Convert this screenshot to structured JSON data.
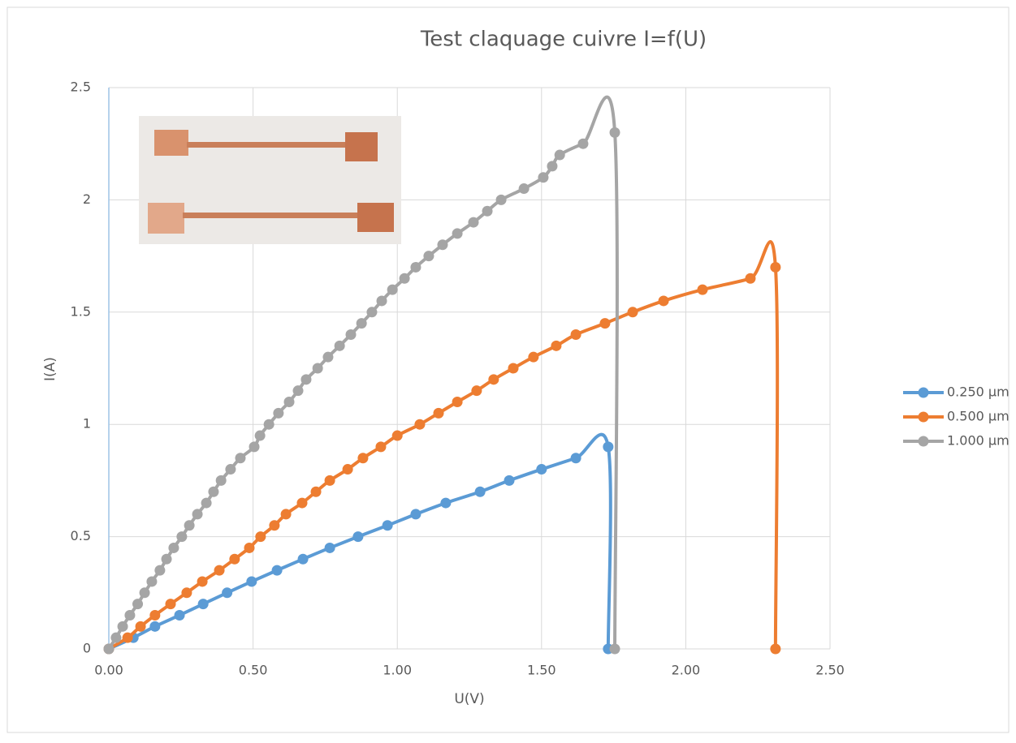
{
  "chart_data": {
    "type": "scatter-smooth",
    "title": "Test claquage cuivre I=f(U)",
    "x_label": "U(V)",
    "y_label": "I(A)",
    "xlim": [
      0,
      2.5
    ],
    "ylim": [
      0,
      2.5
    ],
    "xticks": [
      {
        "value": 0,
        "label": "0.00"
      },
      {
        "value": 0.5,
        "label": "0.50"
      },
      {
        "value": 1,
        "label": "1.00"
      },
      {
        "value": 1.5,
        "label": "1.50"
      },
      {
        "value": 2,
        "label": "2.00"
      },
      {
        "value": 2.5,
        "label": "2.50"
      }
    ],
    "yticks": [
      0,
      0.5,
      1,
      1.5,
      2,
      2.5
    ],
    "grid": true,
    "legend": "right",
    "series": [
      {
        "name": "0.250 µm",
        "color": "#5b9bd5",
        "x": [
          0,
          0.085,
          0.16,
          0.245,
          0.327,
          0.41,
          0.495,
          0.583,
          0.673,
          0.766,
          0.864,
          0.966,
          1.064,
          1.168,
          1.287,
          1.388,
          1.5,
          1.619,
          1.731,
          1.731
        ],
        "values": [
          0,
          0.05,
          0.1,
          0.15,
          0.2,
          0.25,
          0.3,
          0.35,
          0.4,
          0.45,
          0.5,
          0.55,
          0.6,
          0.65,
          0.7,
          0.75,
          0.8,
          0.85,
          0.9,
          0
        ]
      },
      {
        "name": "0.500 µm",
        "color": "#ed7d31",
        "x": [
          0,
          0.065,
          0.11,
          0.16,
          0.214,
          0.27,
          0.324,
          0.383,
          0.436,
          0.487,
          0.526,
          0.574,
          0.614,
          0.67,
          0.718,
          0.766,
          0.828,
          0.881,
          0.943,
          1.0,
          1.078,
          1.143,
          1.208,
          1.275,
          1.334,
          1.402,
          1.472,
          1.551,
          1.619,
          1.72,
          1.816,
          1.923,
          2.058,
          2.224,
          2.311,
          2.311
        ],
        "values": [
          0,
          0.05,
          0.1,
          0.15,
          0.2,
          0.25,
          0.3,
          0.35,
          0.4,
          0.45,
          0.5,
          0.55,
          0.6,
          0.65,
          0.7,
          0.75,
          0.8,
          0.85,
          0.9,
          0.95,
          1.0,
          1.05,
          1.1,
          1.15,
          1.2,
          1.25,
          1.3,
          1.35,
          1.4,
          1.45,
          1.5,
          1.55,
          1.6,
          1.65,
          1.7,
          0
        ]
      },
      {
        "name": "1.000 µm",
        "color": "#a5a5a5",
        "x": [
          0,
          0.025,
          0.048,
          0.073,
          0.1,
          0.124,
          0.149,
          0.177,
          0.2,
          0.225,
          0.253,
          0.279,
          0.307,
          0.338,
          0.363,
          0.389,
          0.422,
          0.456,
          0.504,
          0.524,
          0.555,
          0.588,
          0.625,
          0.656,
          0.684,
          0.724,
          0.76,
          0.8,
          0.839,
          0.876,
          0.912,
          0.946,
          0.983,
          1.025,
          1.064,
          1.109,
          1.157,
          1.208,
          1.264,
          1.312,
          1.36,
          1.439,
          1.506,
          1.537,
          1.563,
          1.644,
          1.754,
          1.754
        ],
        "values": [
          0,
          0.05,
          0.1,
          0.15,
          0.2,
          0.25,
          0.3,
          0.35,
          0.4,
          0.45,
          0.5,
          0.55,
          0.6,
          0.65,
          0.7,
          0.75,
          0.8,
          0.85,
          0.9,
          0.95,
          1.0,
          1.05,
          1.1,
          1.15,
          1.2,
          1.25,
          1.3,
          1.35,
          1.4,
          1.45,
          1.5,
          1.55,
          1.6,
          1.65,
          1.7,
          1.75,
          1.8,
          1.85,
          1.9,
          1.95,
          2.0,
          2.05,
          2.1,
          2.15,
          2.2,
          2.25,
          2.3,
          0
        ]
      }
    ]
  }
}
